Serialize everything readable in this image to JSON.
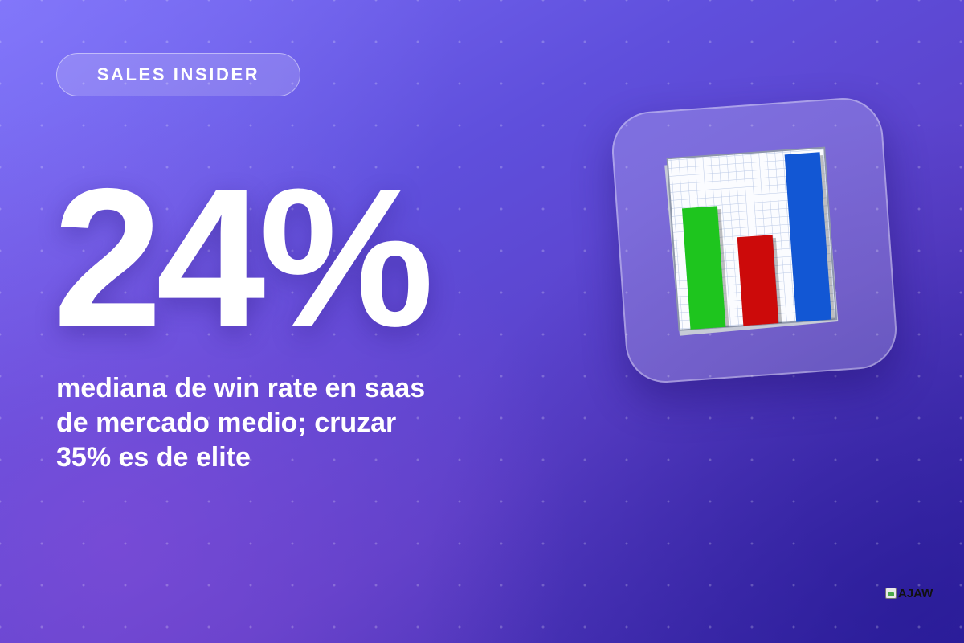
{
  "badge": {
    "label": "SALES INSIDER"
  },
  "stat": {
    "value": "24%"
  },
  "caption": {
    "lines": [
      "mediana de win rate en saas",
      "de mercado medio; cruzar",
      "35% es de elite"
    ]
  },
  "icon": {
    "name": "bar-chart-icon",
    "bars": [
      {
        "level": 0.52,
        "color": "#1ec51e"
      },
      {
        "level": 0.38,
        "color": "#cc0a0a"
      },
      {
        "level": 0.72,
        "color": "#1257d4"
      }
    ]
  },
  "logo": {
    "label": "AJAW"
  },
  "colors": {
    "background_top": "#7a6df6",
    "background_bottom": "#3725a6",
    "text": "#ffffff"
  }
}
